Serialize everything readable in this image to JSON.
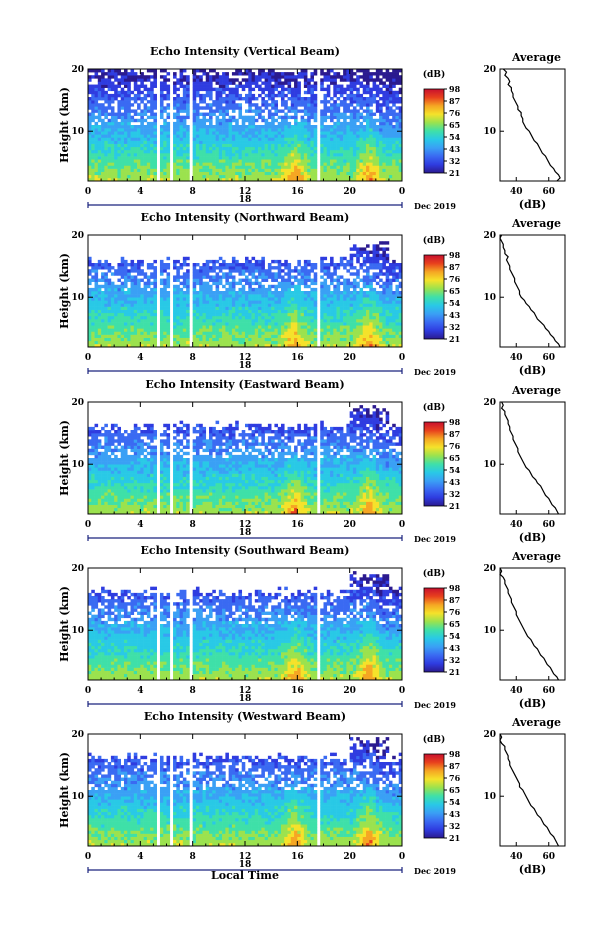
{
  "figure": {
    "xlabel": "Local Time",
    "date_label": "Dec 2019",
    "colorbar_unit": "(dB)",
    "colorbar_ticks": [
      "98",
      "87",
      "76",
      "65",
      "54",
      "43",
      "32",
      "21"
    ],
    "colorbar_colors": [
      "#2b1a8f",
      "#2f3ce0",
      "#3a6af2",
      "#3aa0f5",
      "#29c9e6",
      "#3fe0a8",
      "#9be24e",
      "#f5e22a",
      "#f5a623",
      "#e8401d",
      "#c8102e"
    ]
  },
  "chart_data": [
    {
      "type": "heatmap",
      "title": "Echo Intensity (Vertical Beam)",
      "ylabel": "Height (km)",
      "x_ticks": [
        "0",
        "4",
        "8",
        "12",
        "16",
        "20",
        "0"
      ],
      "x_range": [
        0,
        24
      ],
      "day_label": "18",
      "y_ticks": [
        "20",
        "10"
      ],
      "y_range": [
        2,
        20
      ],
      "average_profile": {
        "title": "Average",
        "xlabel": "(dB)",
        "x_ticks": [
          "40",
          "60"
        ],
        "x_range": [
          30,
          70
        ],
        "y_ticks": [
          "20",
          "10"
        ],
        "y_range": [
          2,
          20
        ],
        "height": [
          20,
          19.5,
          19,
          18.5,
          18,
          17.5,
          17,
          16.5,
          16,
          15.5,
          15,
          14.5,
          14,
          13.5,
          13,
          12.5,
          12,
          11.5,
          11,
          10.5,
          10,
          9.5,
          9,
          8.5,
          8,
          7.5,
          7,
          6.5,
          6,
          5.5,
          5,
          4.5,
          4,
          3.5,
          3,
          2.5,
          2
        ],
        "intensity": [
          32,
          34,
          33,
          35,
          36,
          35,
          37,
          37,
          38,
          38,
          39,
          40,
          41,
          41,
          43,
          43,
          44,
          44,
          45,
          46,
          48,
          49,
          50,
          51,
          53,
          54,
          55,
          56,
          58,
          59,
          60,
          61,
          63,
          64,
          66,
          67,
          65
        ]
      }
    },
    {
      "type": "heatmap",
      "title": "Echo Intensity (Northward Beam)",
      "ylabel": "Height (km)",
      "x_ticks": [
        "0",
        "4",
        "8",
        "12",
        "16",
        "20",
        "0"
      ],
      "x_range": [
        0,
        24
      ],
      "day_label": "18",
      "y_ticks": [
        "20",
        "10"
      ],
      "y_range": [
        2,
        20
      ],
      "average_profile": {
        "title": "Average",
        "xlabel": "(dB)",
        "x_ticks": [
          "40",
          "60"
        ],
        "x_range": [
          30,
          70
        ],
        "y_ticks": [
          "20",
          "10"
        ],
        "y_range": [
          2,
          20
        ],
        "height": [
          20,
          19.5,
          19,
          18.5,
          18,
          17.5,
          17,
          16.5,
          16,
          15.5,
          15,
          14.5,
          14,
          13.5,
          13,
          12.5,
          12,
          11.5,
          11,
          10.5,
          10,
          9.5,
          9,
          8.5,
          8,
          7.5,
          7,
          6.5,
          6,
          5.5,
          5,
          4.5,
          4,
          3.5,
          3,
          2.5,
          2
        ],
        "intensity": [
          31,
          30,
          31,
          32,
          32,
          33,
          33,
          35,
          34,
          35,
          36,
          36,
          37,
          38,
          39,
          39,
          40,
          41,
          42,
          42,
          43,
          45,
          46,
          48,
          49,
          51,
          52,
          53,
          55,
          57,
          58,
          60,
          61,
          63,
          64,
          66,
          67
        ]
      }
    },
    {
      "type": "heatmap",
      "title": "Echo Intensity (Eastward Beam)",
      "ylabel": "Height (km)",
      "x_ticks": [
        "0",
        "4",
        "8",
        "12",
        "16",
        "20",
        "0"
      ],
      "x_range": [
        0,
        24
      ],
      "day_label": "18",
      "y_ticks": [
        "20",
        "10"
      ],
      "y_range": [
        2,
        20
      ],
      "average_profile": {
        "title": "Average",
        "xlabel": "(dB)",
        "x_ticks": [
          "40",
          "60"
        ],
        "x_range": [
          30,
          70
        ],
        "y_ticks": [
          "20",
          "10"
        ],
        "y_range": [
          2,
          20
        ],
        "height": [
          20,
          19.5,
          19,
          18.5,
          18,
          17.5,
          17,
          16.5,
          16,
          15.5,
          15,
          14.5,
          14,
          13.5,
          13,
          12.5,
          12,
          11.5,
          11,
          10.5,
          10,
          9.5,
          9,
          8.5,
          8,
          7.5,
          7,
          6.5,
          6,
          5.5,
          5,
          4.5,
          4,
          3.5,
          3,
          2.5,
          2
        ],
        "intensity": [
          31,
          32,
          31,
          33,
          33,
          34,
          35,
          35,
          36,
          36,
          37,
          38,
          38,
          39,
          40,
          41,
          41,
          42,
          43,
          44,
          45,
          46,
          48,
          49,
          50,
          52,
          53,
          55,
          56,
          57,
          58,
          60,
          61,
          62,
          64,
          65,
          66
        ]
      }
    },
    {
      "type": "heatmap",
      "title": "Echo Intensity (Southward Beam)",
      "ylabel": "Height (km)",
      "x_ticks": [
        "0",
        "4",
        "8",
        "12",
        "16",
        "20",
        "0"
      ],
      "x_range": [
        0,
        24
      ],
      "day_label": "18",
      "y_ticks": [
        "20",
        "10"
      ],
      "y_range": [
        2,
        20
      ],
      "average_profile": {
        "title": "Average",
        "xlabel": "(dB)",
        "x_ticks": [
          "40",
          "60"
        ],
        "x_range": [
          30,
          70
        ],
        "y_ticks": [
          "20",
          "10"
        ],
        "y_range": [
          2,
          20
        ],
        "height": [
          20,
          19.5,
          19,
          18.5,
          18,
          17.5,
          17,
          16.5,
          16,
          15.5,
          15,
          14.5,
          14,
          13.5,
          13,
          12.5,
          12,
          11.5,
          11,
          10.5,
          10,
          9.5,
          9,
          8.5,
          8,
          7.5,
          7,
          6.5,
          6,
          5.5,
          5,
          4.5,
          4,
          3.5,
          3,
          2.5,
          2
        ],
        "intensity": [
          30,
          31,
          30,
          32,
          33,
          33,
          34,
          35,
          35,
          36,
          37,
          37,
          38,
          39,
          40,
          40,
          41,
          42,
          43,
          44,
          45,
          46,
          47,
          49,
          50,
          51,
          53,
          54,
          55,
          57,
          58,
          59,
          61,
          62,
          63,
          65,
          66
        ]
      }
    },
    {
      "type": "heatmap",
      "title": "Echo Intensity (Westward Beam)",
      "ylabel": "Height (km)",
      "x_ticks": [
        "0",
        "4",
        "8",
        "12",
        "16",
        "20",
        "0"
      ],
      "x_range": [
        0,
        24
      ],
      "day_label": "18",
      "y_ticks": [
        "20",
        "10"
      ],
      "y_range": [
        2,
        20
      ],
      "average_profile": {
        "title": "Average",
        "xlabel": "(dB)",
        "x_ticks": [
          "40",
          "60"
        ],
        "x_range": [
          30,
          70
        ],
        "y_ticks": [
          "20",
          "10"
        ],
        "y_range": [
          2,
          20
        ],
        "height": [
          20,
          19.5,
          19,
          18.5,
          18,
          17.5,
          17,
          16.5,
          16,
          15.5,
          15,
          14.5,
          14,
          13.5,
          13,
          12.5,
          12,
          11.5,
          11,
          10.5,
          10,
          9.5,
          9,
          8.5,
          8,
          7.5,
          7,
          6.5,
          6,
          5.5,
          5,
          4.5,
          4,
          3.5,
          3,
          2.5,
          2
        ],
        "intensity": [
          30,
          31,
          30,
          31,
          33,
          33,
          34,
          35,
          35,
          36,
          36,
          37,
          38,
          39,
          40,
          41,
          42,
          42,
          44,
          45,
          46,
          47,
          48,
          49,
          51,
          52,
          53,
          55,
          56,
          57,
          59,
          60,
          61,
          63,
          64,
          65,
          66
        ]
      }
    }
  ]
}
